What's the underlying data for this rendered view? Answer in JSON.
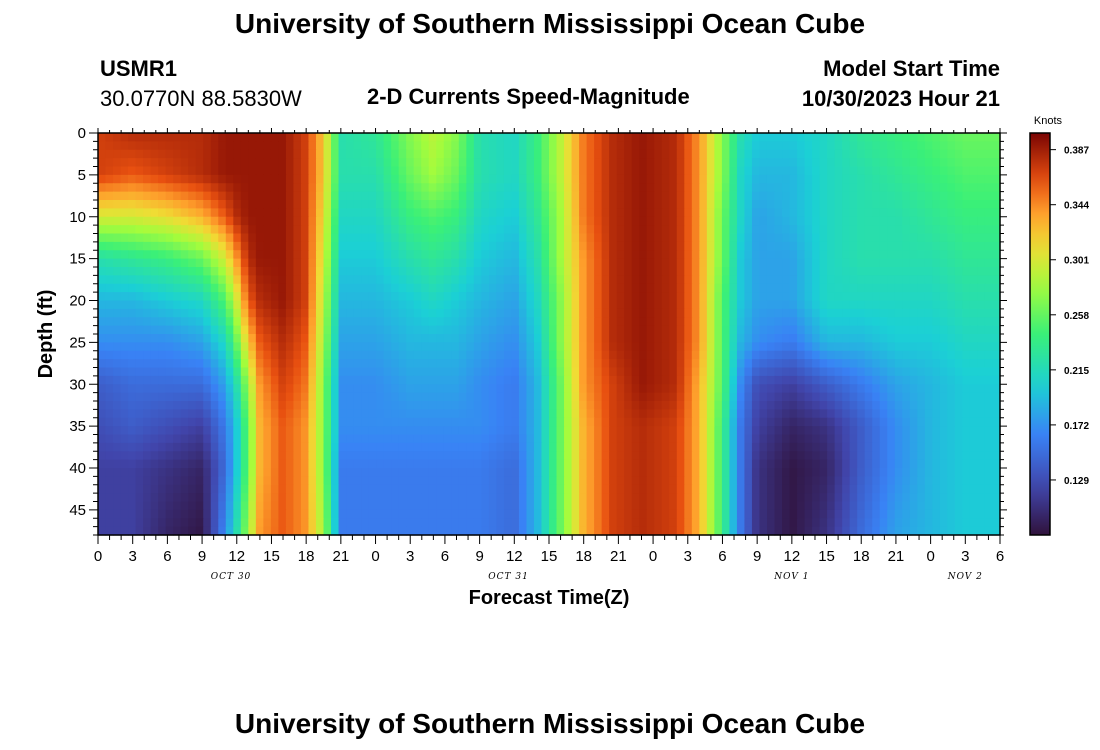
{
  "header": {
    "title": "University of Southern Mississippi Ocean Cube",
    "station_id": "USMR1",
    "station_coords": "30.0770N  88.5830W",
    "plot_title": "2-D Currents Speed-Magnitude",
    "model_label": "Model Start Time",
    "model_time": "10/30/2023 Hour 21"
  },
  "footer": {
    "title": "University of Southern Mississippi Ocean Cube"
  },
  "chart_data": {
    "type": "heatmap",
    "title": "2-D Currents Speed-Magnitude",
    "xlabel": "Forecast Time(Z)",
    "ylabel": "Depth (ft)",
    "x_unit": "hours since Oct 30 00Z",
    "xlim": [
      0,
      78
    ],
    "ylim": [
      0,
      48
    ],
    "x_tick_labels": [
      "0",
      "3",
      "6",
      "9",
      "12",
      "15",
      "18",
      "21",
      "0",
      "3",
      "6",
      "9",
      "12",
      "15",
      "18",
      "21",
      "0",
      "3",
      "6",
      "9",
      "12",
      "15",
      "18",
      "21",
      "0",
      "3",
      "6"
    ],
    "y_ticks": [
      0,
      5,
      10,
      15,
      20,
      25,
      30,
      35,
      40,
      45
    ],
    "date_labels": [
      {
        "label": "OCT 30",
        "hour": 11.5
      },
      {
        "label": "OCT 31",
        "hour": 35.5
      },
      {
        "label": "NOV 1",
        "hour": 60
      },
      {
        "label": "NOV 2",
        "hour": 75
      }
    ],
    "colorbar": {
      "unit": "Knots",
      "min": 0.086,
      "max": 0.4,
      "tick_values": [
        0.387,
        0.344,
        0.301,
        0.258,
        0.215,
        0.172,
        0.129
      ],
      "tick_labels": [
        "0.387",
        "0.344",
        "0.301",
        "0.258",
        "0.215",
        "0.172",
        "0.129"
      ]
    },
    "columns": [
      {
        "hour": 0,
        "speed": [
          0.37,
          0.37,
          0.3,
          0.22,
          0.19,
          0.17,
          0.14,
          0.13,
          0.12,
          0.12
        ]
      },
      {
        "hour": 3,
        "speed": [
          0.38,
          0.36,
          0.3,
          0.23,
          0.19,
          0.17,
          0.15,
          0.14,
          0.12,
          0.12
        ]
      },
      {
        "hour": 6,
        "speed": [
          0.38,
          0.37,
          0.31,
          0.24,
          0.2,
          0.17,
          0.15,
          0.13,
          0.11,
          0.1
        ]
      },
      {
        "hour": 9,
        "speed": [
          0.38,
          0.38,
          0.33,
          0.26,
          0.21,
          0.18,
          0.15,
          0.12,
          0.1,
          0.09
        ]
      },
      {
        "hour": 11,
        "speed": [
          0.39,
          0.39,
          0.36,
          0.3,
          0.25,
          0.21,
          0.18,
          0.16,
          0.15,
          0.17
        ]
      },
      {
        "hour": 12,
        "speed": [
          0.39,
          0.39,
          0.38,
          0.34,
          0.3,
          0.26,
          0.22,
          0.2,
          0.2,
          0.22
        ]
      },
      {
        "hour": 13,
        "speed": [
          0.39,
          0.39,
          0.39,
          0.38,
          0.36,
          0.32,
          0.28,
          0.26,
          0.26,
          0.28
        ]
      },
      {
        "hour": 14,
        "speed": [
          0.39,
          0.39,
          0.39,
          0.39,
          0.38,
          0.36,
          0.34,
          0.33,
          0.33,
          0.34
        ]
      },
      {
        "hour": 16,
        "speed": [
          0.39,
          0.39,
          0.39,
          0.39,
          0.39,
          0.38,
          0.37,
          0.36,
          0.36,
          0.36
        ]
      },
      {
        "hour": 18,
        "speed": [
          0.37,
          0.37,
          0.37,
          0.37,
          0.37,
          0.36,
          0.35,
          0.34,
          0.34,
          0.34
        ]
      },
      {
        "hour": 19.5,
        "speed": [
          0.32,
          0.32,
          0.31,
          0.3,
          0.29,
          0.28,
          0.27,
          0.27,
          0.27,
          0.28
        ]
      },
      {
        "hour": 21,
        "speed": [
          0.22,
          0.22,
          0.21,
          0.2,
          0.19,
          0.18,
          0.17,
          0.17,
          0.16,
          0.16
        ]
      },
      {
        "hour": 24,
        "speed": [
          0.23,
          0.22,
          0.21,
          0.2,
          0.19,
          0.18,
          0.17,
          0.17,
          0.16,
          0.16
        ]
      },
      {
        "hour": 27,
        "speed": [
          0.27,
          0.26,
          0.24,
          0.22,
          0.2,
          0.19,
          0.18,
          0.17,
          0.16,
          0.16
        ]
      },
      {
        "hour": 29,
        "speed": [
          0.29,
          0.28,
          0.25,
          0.23,
          0.21,
          0.19,
          0.18,
          0.17,
          0.16,
          0.16
        ]
      },
      {
        "hour": 31,
        "speed": [
          0.27,
          0.26,
          0.24,
          0.22,
          0.2,
          0.19,
          0.18,
          0.17,
          0.16,
          0.16
        ]
      },
      {
        "hour": 33,
        "speed": [
          0.22,
          0.22,
          0.21,
          0.2,
          0.19,
          0.18,
          0.17,
          0.17,
          0.16,
          0.16
        ]
      },
      {
        "hour": 36,
        "speed": [
          0.21,
          0.21,
          0.2,
          0.19,
          0.18,
          0.17,
          0.16,
          0.16,
          0.15,
          0.15
        ]
      },
      {
        "hour": 38,
        "speed": [
          0.24,
          0.24,
          0.23,
          0.22,
          0.21,
          0.2,
          0.19,
          0.19,
          0.19,
          0.19
        ]
      },
      {
        "hour": 40,
        "speed": [
          0.29,
          0.29,
          0.28,
          0.28,
          0.27,
          0.27,
          0.26,
          0.26,
          0.26,
          0.26
        ]
      },
      {
        "hour": 42,
        "speed": [
          0.35,
          0.35,
          0.35,
          0.34,
          0.34,
          0.34,
          0.34,
          0.33,
          0.33,
          0.33
        ]
      },
      {
        "hour": 44.5,
        "speed": [
          0.38,
          0.38,
          0.38,
          0.38,
          0.38,
          0.38,
          0.37,
          0.37,
          0.37,
          0.37
        ]
      },
      {
        "hour": 47,
        "speed": [
          0.39,
          0.39,
          0.39,
          0.39,
          0.39,
          0.39,
          0.39,
          0.38,
          0.38,
          0.38
        ]
      },
      {
        "hour": 50,
        "speed": [
          0.38,
          0.38,
          0.38,
          0.38,
          0.38,
          0.38,
          0.38,
          0.37,
          0.37,
          0.37
        ]
      },
      {
        "hour": 52,
        "speed": [
          0.34,
          0.34,
          0.34,
          0.34,
          0.34,
          0.34,
          0.33,
          0.33,
          0.33,
          0.33
        ]
      },
      {
        "hour": 54,
        "speed": [
          0.27,
          0.27,
          0.26,
          0.26,
          0.25,
          0.25,
          0.25,
          0.24,
          0.24,
          0.24
        ]
      },
      {
        "hour": 55.5,
        "speed": [
          0.22,
          0.21,
          0.21,
          0.2,
          0.2,
          0.19,
          0.17,
          0.16,
          0.16,
          0.16
        ]
      },
      {
        "hour": 57,
        "speed": [
          0.2,
          0.19,
          0.18,
          0.18,
          0.18,
          0.17,
          0.13,
          0.12,
          0.11,
          0.11
        ]
      },
      {
        "hour": 60,
        "speed": [
          0.2,
          0.19,
          0.19,
          0.18,
          0.18,
          0.16,
          0.12,
          0.1,
          0.09,
          0.09
        ]
      },
      {
        "hour": 63,
        "speed": [
          0.21,
          0.21,
          0.21,
          0.21,
          0.21,
          0.19,
          0.14,
          0.11,
          0.1,
          0.11
        ]
      },
      {
        "hour": 66,
        "speed": [
          0.23,
          0.22,
          0.22,
          0.22,
          0.21,
          0.19,
          0.16,
          0.14,
          0.14,
          0.15
        ]
      },
      {
        "hour": 69,
        "speed": [
          0.24,
          0.23,
          0.22,
          0.22,
          0.21,
          0.2,
          0.18,
          0.17,
          0.17,
          0.18
        ]
      },
      {
        "hour": 72,
        "speed": [
          0.25,
          0.24,
          0.23,
          0.22,
          0.21,
          0.2,
          0.19,
          0.19,
          0.19,
          0.19
        ]
      },
      {
        "hour": 75,
        "speed": [
          0.26,
          0.25,
          0.24,
          0.23,
          0.22,
          0.21,
          0.2,
          0.2,
          0.2,
          0.2
        ]
      },
      {
        "hour": 78,
        "speed": [
          0.26,
          0.25,
          0.24,
          0.23,
          0.22,
          0.21,
          0.2,
          0.2,
          0.2,
          0.2
        ]
      }
    ],
    "colors": {
      "axis": "#000000",
      "background": "#ffffff"
    }
  }
}
